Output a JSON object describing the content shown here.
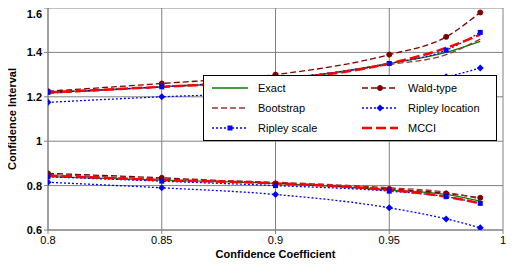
{
  "chart_data": {
    "type": "line",
    "x_label": "Confidence Coefficient",
    "y_label": "Confidence Interval",
    "x": [
      0.8,
      0.85,
      0.9,
      0.95,
      0.975,
      0.99
    ],
    "xlim": [
      0.8,
      1
    ],
    "xticks": [
      0.8,
      0.85,
      0.9,
      0.95,
      1
    ],
    "ylim": [
      0.6,
      1.6
    ],
    "yticks": [
      0.6,
      0.8,
      1,
      1.2,
      1.4,
      1.6
    ],
    "grid": true,
    "legend": "right",
    "series": [
      {
        "name": "Exact",
        "color": "#008000",
        "line_style": "solid",
        "marker": "none",
        "upper": [
          1.22,
          1.245,
          1.275,
          1.35,
          1.4,
          1.45
        ],
        "lower": [
          0.84,
          0.825,
          0.81,
          0.78,
          0.76,
          0.73
        ]
      },
      {
        "name": "Wald-type",
        "color": "#800000",
        "line_style": "dashed",
        "marker": "circle",
        "upper": [
          1.225,
          1.26,
          1.3,
          1.39,
          1.47,
          1.58
        ],
        "lower": [
          0.855,
          0.835,
          0.81,
          0.785,
          0.765,
          0.745
        ]
      },
      {
        "name": "Bootstrap",
        "color": "#993333",
        "line_style": "dashed",
        "marker": "none",
        "upper": [
          1.215,
          1.245,
          1.28,
          1.345,
          1.39,
          1.46
        ],
        "lower": [
          0.85,
          0.83,
          0.815,
          0.79,
          0.77,
          0.74
        ]
      },
      {
        "name": "Ripley location",
        "color": "#0000ff",
        "line_style": "dotted",
        "marker": "diamond",
        "upper": [
          1.175,
          1.2,
          1.22,
          1.26,
          1.29,
          1.33
        ],
        "lower": [
          0.815,
          0.79,
          0.76,
          0.7,
          0.65,
          0.61
        ]
      },
      {
        "name": "Ripley scale",
        "color": "#0000ff",
        "line_style": "dotted",
        "marker": "square",
        "upper": [
          1.22,
          1.245,
          1.28,
          1.35,
          1.41,
          1.49
        ],
        "lower": [
          0.84,
          0.82,
          0.8,
          0.775,
          0.75,
          0.72
        ]
      },
      {
        "name": "MCCI",
        "color": "#ff0000",
        "line_style": "long_dash",
        "marker": "none",
        "upper": [
          1.22,
          1.245,
          1.275,
          1.35,
          1.42,
          1.48
        ],
        "lower": [
          0.845,
          0.825,
          0.81,
          0.78,
          0.75,
          0.72
        ]
      }
    ]
  }
}
